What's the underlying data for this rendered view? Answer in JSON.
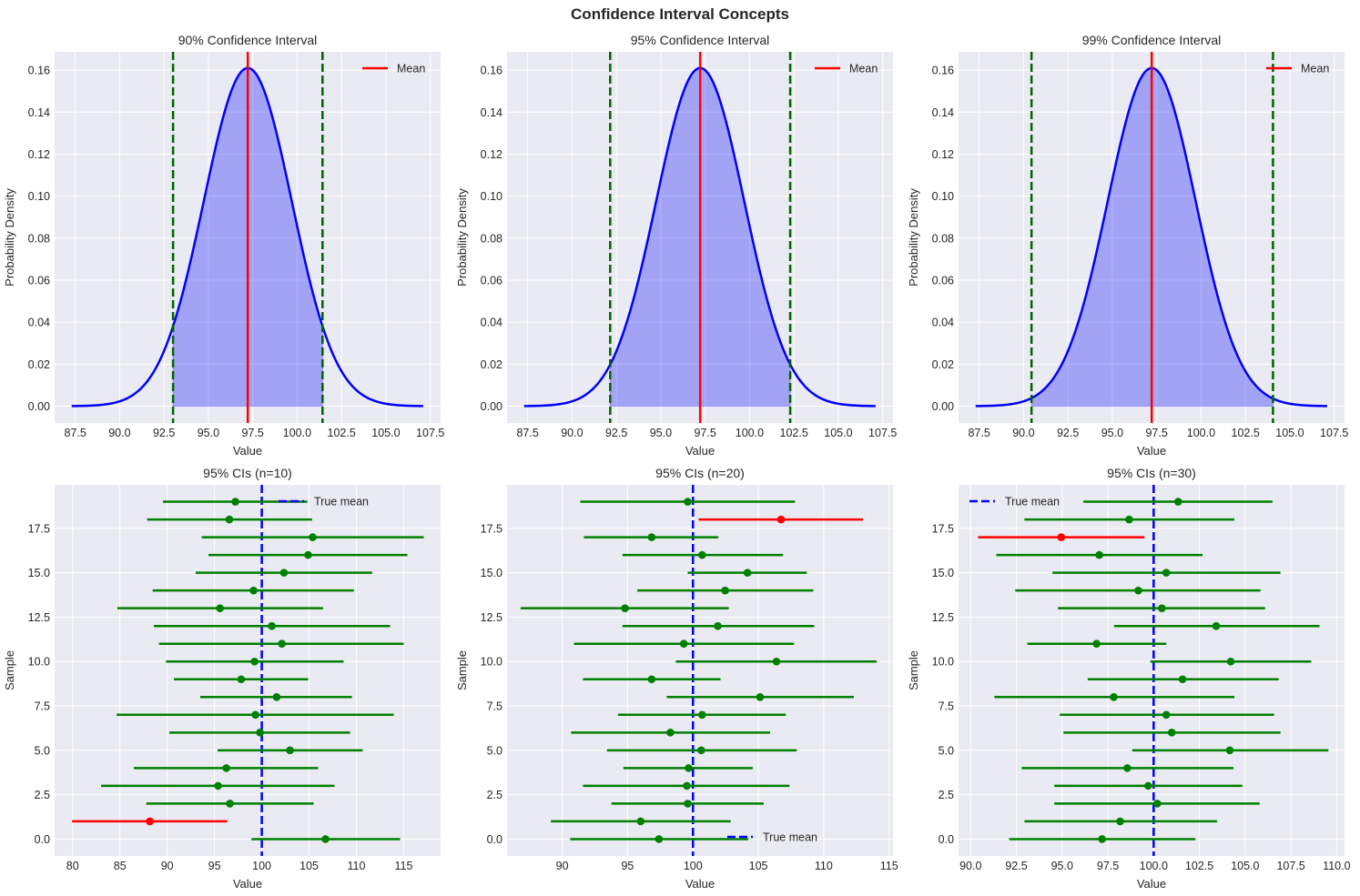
{
  "title": "Confidence Interval Concepts",
  "chart_data": [
    {
      "type": "area",
      "title": "90% Confidence Interval",
      "xlabel": "Value",
      "ylabel": "Probability Density",
      "xlim": [
        86.34,
        108.08
      ],
      "ylim": [
        -0.008,
        0.1687
      ],
      "xticks": [
        "87.5",
        "90.0",
        "92.5",
        "95.0",
        "97.5",
        "100.0",
        "102.5",
        "105.0",
        "107.5"
      ],
      "xtick_values": [
        87.5,
        90,
        92.5,
        95,
        97.5,
        100,
        102.5,
        105,
        107.5
      ],
      "yticks": [
        "0.00",
        "0.02",
        "0.04",
        "0.06",
        "0.08",
        "0.10",
        "0.12",
        "0.14",
        "0.16"
      ],
      "ytick_values": [
        0,
        0.02,
        0.04,
        0.06,
        0.08,
        0.1,
        0.12,
        0.14,
        0.16
      ],
      "distribution": {
        "mean": 97.22,
        "sd": 2.478,
        "x_range": [
          87.3,
          107.1
        ]
      },
      "ci": [
        93.01,
        101.43
      ],
      "legend": [
        {
          "label": "Mean",
          "color": "#ff0000",
          "style": "solid"
        }
      ],
      "legend_loc": "upper right",
      "grid": true,
      "colors": {
        "curve": "#0000ff",
        "fill": "#0000ff",
        "mean": "#ff0000",
        "ci_bounds": "#006400"
      }
    },
    {
      "type": "area",
      "title": "95% Confidence Interval",
      "xlabel": "Value",
      "ylabel": "Probability Density",
      "xlim": [
        86.34,
        108.08
      ],
      "ylim": [
        -0.008,
        0.1687
      ],
      "xticks": [
        "87.5",
        "90.0",
        "92.5",
        "95.0",
        "97.5",
        "100.0",
        "102.5",
        "105.0",
        "107.5"
      ],
      "xtick_values": [
        87.5,
        90,
        92.5,
        95,
        97.5,
        100,
        102.5,
        105,
        107.5
      ],
      "yticks": [
        "0.00",
        "0.02",
        "0.04",
        "0.06",
        "0.08",
        "0.10",
        "0.12",
        "0.14",
        "0.16"
      ],
      "ytick_values": [
        0,
        0.02,
        0.04,
        0.06,
        0.08,
        0.1,
        0.12,
        0.14,
        0.16
      ],
      "distribution": {
        "mean": 97.22,
        "sd": 2.478,
        "x_range": [
          87.3,
          107.1
        ]
      },
      "ci": [
        92.15,
        102.29
      ],
      "legend": [
        {
          "label": "Mean",
          "color": "#ff0000",
          "style": "solid"
        }
      ],
      "legend_loc": "upper right",
      "grid": true,
      "colors": {
        "curve": "#0000ff",
        "fill": "#0000ff",
        "mean": "#ff0000",
        "ci_bounds": "#006400"
      }
    },
    {
      "type": "area",
      "title": "99% Confidence Interval",
      "xlabel": "Value",
      "ylabel": "Probability Density",
      "xlim": [
        86.34,
        108.08
      ],
      "ylim": [
        -0.008,
        0.1687
      ],
      "xticks": [
        "87.5",
        "90.0",
        "92.5",
        "95.0",
        "97.5",
        "100.0",
        "102.5",
        "105.0",
        "107.5"
      ],
      "xtick_values": [
        87.5,
        90,
        92.5,
        95,
        97.5,
        100,
        102.5,
        105,
        107.5
      ],
      "yticks": [
        "0.00",
        "0.02",
        "0.04",
        "0.06",
        "0.08",
        "0.10",
        "0.12",
        "0.14",
        "0.16"
      ],
      "ytick_values": [
        0,
        0.02,
        0.04,
        0.06,
        0.08,
        0.1,
        0.12,
        0.14,
        0.16
      ],
      "distribution": {
        "mean": 97.22,
        "sd": 2.478,
        "x_range": [
          87.3,
          107.1
        ]
      },
      "ci": [
        90.45,
        104.05
      ],
      "legend": [
        {
          "label": "Mean",
          "color": "#ff0000",
          "style": "solid"
        }
      ],
      "legend_loc": "upper right",
      "grid": true,
      "colors": {
        "curve": "#0000ff",
        "fill": "#0000ff",
        "mean": "#ff0000",
        "ci_bounds": "#006400"
      }
    },
    {
      "type": "scatter",
      "title": "95% CIs (n=10)",
      "xlabel": "Value",
      "ylabel": "Sample",
      "xlim": [
        78.1,
        118.9
      ],
      "ylim": [
        -0.95,
        19.95
      ],
      "xticks": [
        "80",
        "85",
        "90",
        "95",
        "100",
        "105",
        "110",
        "115"
      ],
      "xtick_values": [
        80,
        85,
        90,
        95,
        100,
        105,
        110,
        115
      ],
      "yticks": [
        "0.0",
        "2.5",
        "5.0",
        "7.5",
        "10.0",
        "12.5",
        "15.0",
        "17.5"
      ],
      "ytick_values": [
        0,
        2.5,
        5,
        7.5,
        10,
        12.5,
        15,
        17.5
      ],
      "true_mean": 100,
      "legend": [
        {
          "label": "True mean",
          "color": "#0000ff",
          "style": "dashed"
        }
      ],
      "legend_loc": "upper right",
      "grid": true,
      "colors": {
        "covers": "#008000",
        "misses": "#ff0000",
        "true_mean": "#0000ff"
      },
      "intervals": [
        {
          "sample": 0,
          "mean": 106.73,
          "lower": 98.91,
          "upper": 114.62
        },
        {
          "sample": 1,
          "mean": 88.17,
          "lower": 79.94,
          "upper": 96.35
        },
        {
          "sample": 2,
          "mean": 96.63,
          "lower": 87.79,
          "upper": 105.48
        },
        {
          "sample": 3,
          "mean": 95.38,
          "lower": 83.01,
          "upper": 107.69
        },
        {
          "sample": 4,
          "mean": 96.25,
          "lower": 86.47,
          "upper": 105.96
        },
        {
          "sample": 5,
          "mean": 102.98,
          "lower": 95.32,
          "upper": 110.67
        },
        {
          "sample": 6,
          "mean": 99.81,
          "lower": 90.22,
          "upper": 109.33
        },
        {
          "sample": 7,
          "mean": 99.33,
          "lower": 84.65,
          "upper": 113.94
        },
        {
          "sample": 8,
          "mean": 101.57,
          "lower": 93.49,
          "upper": 109.52
        },
        {
          "sample": 9,
          "mean": 97.82,
          "lower": 90.71,
          "upper": 104.9
        },
        {
          "sample": 10,
          "mean": 99.23,
          "lower": 89.87,
          "upper": 108.65
        },
        {
          "sample": 11,
          "mean": 102.12,
          "lower": 89.13,
          "upper": 115.0
        },
        {
          "sample": 12,
          "mean": 101.06,
          "lower": 88.59,
          "upper": 113.56
        },
        {
          "sample": 13,
          "mean": 95.58,
          "lower": 84.74,
          "upper": 106.47
        },
        {
          "sample": 14,
          "mean": 99.13,
          "lower": 88.46,
          "upper": 109.74
        },
        {
          "sample": 15,
          "mean": 102.34,
          "lower": 93.01,
          "upper": 111.67
        },
        {
          "sample": 16,
          "mean": 104.9,
          "lower": 94.36,
          "upper": 115.38
        },
        {
          "sample": 17,
          "mean": 105.38,
          "lower": 93.65,
          "upper": 117.12
        },
        {
          "sample": 18,
          "mean": 96.57,
          "lower": 87.88,
          "upper": 105.32
        },
        {
          "sample": 19,
          "mean": 97.21,
          "lower": 89.55,
          "upper": 104.81
        }
      ]
    },
    {
      "type": "scatter",
      "title": "95% CIs (n=20)",
      "xlabel": "Value",
      "ylabel": "Sample",
      "xlim": [
        85.78,
        115.3
      ],
      "ylim": [
        -0.95,
        19.95
      ],
      "xticks": [
        "90",
        "95",
        "100",
        "105",
        "110",
        "115"
      ],
      "xtick_values": [
        90,
        95,
        100,
        105,
        110,
        115
      ],
      "yticks": [
        "0.0",
        "2.5",
        "5.0",
        "7.5",
        "10.0",
        "12.5",
        "15.0",
        "17.5"
      ],
      "ytick_values": [
        0,
        2.5,
        5,
        7.5,
        10,
        12.5,
        15,
        17.5
      ],
      "true_mean": 100,
      "legend": [
        {
          "label": "True mean",
          "color": "#0000ff",
          "style": "dashed"
        }
      ],
      "legend_loc": "lower right",
      "grid": true,
      "colors": {
        "covers": "#008000",
        "misses": "#ff0000",
        "true_mean": "#0000ff"
      },
      "intervals": [
        {
          "sample": 0,
          "mean": 97.4,
          "lower": 90.61,
          "upper": 104.22
        },
        {
          "sample": 1,
          "mean": 96.0,
          "lower": 89.13,
          "upper": 102.88
        },
        {
          "sample": 2,
          "mean": 99.6,
          "lower": 93.77,
          "upper": 105.41
        },
        {
          "sample": 3,
          "mean": 99.53,
          "lower": 91.59,
          "upper": 107.38
        },
        {
          "sample": 4,
          "mean": 99.67,
          "lower": 94.68,
          "upper": 104.57
        },
        {
          "sample": 5,
          "mean": 100.63,
          "lower": 93.42,
          "upper": 107.94
        },
        {
          "sample": 6,
          "mean": 98.27,
          "lower": 90.68,
          "upper": 105.9
        },
        {
          "sample": 7,
          "mean": 100.7,
          "lower": 94.26,
          "upper": 107.1
        },
        {
          "sample": 8,
          "mean": 105.13,
          "lower": 97.99,
          "upper": 112.3
        },
        {
          "sample": 9,
          "mean": 96.84,
          "lower": 91.59,
          "upper": 102.11
        },
        {
          "sample": 10,
          "mean": 106.39,
          "lower": 98.69,
          "upper": 114.05
        },
        {
          "sample": 11,
          "mean": 99.3,
          "lower": 90.89,
          "upper": 107.73
        },
        {
          "sample": 12,
          "mean": 101.9,
          "lower": 94.61,
          "upper": 109.27
        },
        {
          "sample": 13,
          "mean": 94.8,
          "lower": 86.81,
          "upper": 102.74
        },
        {
          "sample": 14,
          "mean": 102.46,
          "lower": 95.74,
          "upper": 109.2
        },
        {
          "sample": 15,
          "mean": 104.17,
          "lower": 99.6,
          "upper": 108.71
        },
        {
          "sample": 16,
          "mean": 100.7,
          "lower": 94.61,
          "upper": 106.89
        },
        {
          "sample": 17,
          "mean": 96.84,
          "lower": 91.66,
          "upper": 101.94
        },
        {
          "sample": 18,
          "mean": 106.74,
          "lower": 100.44,
          "upper": 113.0
        },
        {
          "sample": 19,
          "mean": 99.6,
          "lower": 91.38,
          "upper": 107.8
        }
      ]
    },
    {
      "type": "scatter",
      "title": "95% CIs (n=30)",
      "xlabel": "Value",
      "ylabel": "Sample",
      "xlim": [
        89.34,
        110.43
      ],
      "ylim": [
        -0.95,
        19.95
      ],
      "xticks": [
        "90.0",
        "92.5",
        "95.0",
        "97.5",
        "100.0",
        "102.5",
        "105.0",
        "107.5",
        "110.0"
      ],
      "xtick_values": [
        90,
        92.5,
        95,
        97.5,
        100,
        102.5,
        105,
        107.5,
        110
      ],
      "yticks": [
        "0.0",
        "2.5",
        "5.0",
        "7.5",
        "10.0",
        "12.5",
        "15.0",
        "17.5"
      ],
      "ytick_values": [
        0,
        2.5,
        5,
        7.5,
        10,
        12.5,
        15,
        17.5
      ],
      "true_mean": 100,
      "legend": [
        {
          "label": "True mean",
          "color": "#0000ff",
          "style": "dashed"
        }
      ],
      "legend_loc": "upper left",
      "grid": true,
      "colors": {
        "covers": "#008000",
        "misses": "#ff0000",
        "true_mean": "#0000ff"
      },
      "intervals": [
        {
          "sample": 0,
          "mean": 97.18,
          "lower": 92.1,
          "upper": 102.28
        },
        {
          "sample": 1,
          "mean": 98.17,
          "lower": 92.94,
          "upper": 103.47
        },
        {
          "sample": 2,
          "mean": 100.2,
          "lower": 94.57,
          "upper": 105.79
        },
        {
          "sample": 3,
          "mean": 99.7,
          "lower": 94.57,
          "upper": 104.85
        },
        {
          "sample": 4,
          "mean": 98.56,
          "lower": 92.79,
          "upper": 104.36
        },
        {
          "sample": 5,
          "mean": 104.16,
          "lower": 98.83,
          "upper": 109.55
        },
        {
          "sample": 6,
          "mean": 100.99,
          "lower": 95.07,
          "upper": 106.93
        },
        {
          "sample": 7,
          "mean": 100.69,
          "lower": 94.87,
          "upper": 106.58
        },
        {
          "sample": 8,
          "mean": 97.82,
          "lower": 91.3,
          "upper": 104.41
        },
        {
          "sample": 9,
          "mean": 101.58,
          "lower": 96.4,
          "upper": 106.83
        },
        {
          "sample": 10,
          "mean": 104.21,
          "lower": 99.82,
          "upper": 108.61
        },
        {
          "sample": 11,
          "mean": 96.88,
          "lower": 93.1,
          "upper": 100.69
        },
        {
          "sample": 12,
          "mean": 103.42,
          "lower": 97.84,
          "upper": 109.06
        },
        {
          "sample": 13,
          "mean": 100.45,
          "lower": 94.77,
          "upper": 106.09
        },
        {
          "sample": 14,
          "mean": 99.16,
          "lower": 92.44,
          "upper": 105.84
        },
        {
          "sample": 15,
          "mean": 100.69,
          "lower": 94.47,
          "upper": 106.93
        },
        {
          "sample": 16,
          "mean": 97.03,
          "lower": 91.4,
          "upper": 102.67
        },
        {
          "sample": 17,
          "mean": 94.95,
          "lower": 90.41,
          "upper": 99.5
        },
        {
          "sample": 18,
          "mean": 98.66,
          "lower": 92.94,
          "upper": 104.41
        },
        {
          "sample": 19,
          "mean": 101.34,
          "lower": 96.16,
          "upper": 106.49
        }
      ]
    }
  ]
}
